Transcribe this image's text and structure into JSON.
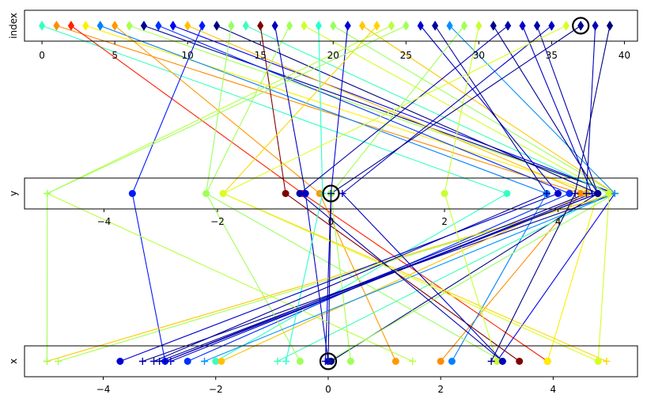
{
  "chart_data": {
    "type": "parallel-coordinates",
    "title": "",
    "axes": [
      {
        "name": "index",
        "label": "index",
        "range": [
          -1.2,
          40.9
        ],
        "ticks": [
          0,
          5,
          10,
          15,
          20,
          25,
          30,
          35,
          40
        ]
      },
      {
        "name": "y",
        "label": "y",
        "range": [
          -5.4,
          5.4
        ],
        "ticks": [
          -4,
          -2,
          0,
          2,
          4
        ],
        "tick_labels": [
          "−4",
          "−2",
          "0",
          "2",
          "4"
        ]
      },
      {
        "name": "x",
        "label": "x",
        "range": [
          -5.4,
          5.5
        ],
        "ticks": [
          -4,
          -2,
          0,
          2,
          4
        ],
        "tick_labels": [
          "−4",
          "−2",
          "0",
          "2",
          "4"
        ]
      }
    ],
    "colormap": "jet",
    "highlight_index": 37,
    "records": [
      {
        "index": 0,
        "y": 3.1,
        "x": -2.0,
        "marker": "o",
        "color": "#36ffc3"
      },
      {
        "index": 1,
        "y": 4.4,
        "x": 2.0,
        "marker": "o",
        "color": "#ff8c00"
      },
      {
        "index": 2,
        "y": -0.5,
        "x": 3.9,
        "marker": "o",
        "color": "#ff2000"
      },
      {
        "index": 3,
        "y": 4.7,
        "x": 3.9,
        "marker": "o",
        "color": "#ffee00"
      },
      {
        "index": 4,
        "y": 3.8,
        "x": 2.2,
        "marker": "o",
        "color": "#0080ff"
      },
      {
        "index": 5,
        "y": -0.2,
        "x": 1.2,
        "marker": "o",
        "color": "#ff9800"
      },
      {
        "index": 6,
        "y": 5.0,
        "x": -4.8,
        "marker": "+",
        "color": "#a8ff50"
      },
      {
        "index": 7,
        "y": 5.0,
        "x": -3.3,
        "marker": "+",
        "color": "#00009b"
      },
      {
        "index": 8,
        "y": 4.2,
        "x": -2.5,
        "marker": "o",
        "color": "#0030ff"
      },
      {
        "index": 9,
        "y": 5.0,
        "x": 3.0,
        "marker": "+",
        "color": "#0000f0"
      },
      {
        "index": 10,
        "y": 4.5,
        "x": -1.9,
        "marker": "o",
        "color": "#ffc000"
      },
      {
        "index": 11,
        "y": -3.5,
        "x": -2.9,
        "marker": "o",
        "color": "#0018ff"
      },
      {
        "index": 12,
        "y": 4.7,
        "x": 0.05,
        "marker": "o",
        "color": "#000080"
      },
      {
        "index": 13,
        "y": -2.2,
        "x": 3.1,
        "marker": "+",
        "color": "#96ff60"
      },
      {
        "index": 14,
        "y": 4.9,
        "x": -0.9,
        "marker": "+",
        "color": "#3cffba"
      },
      {
        "index": 15,
        "y": -0.8,
        "x": 3.4,
        "marker": "o",
        "color": "#800000"
      },
      {
        "index": 16,
        "y": -0.45,
        "x": 0.0,
        "marker": "o",
        "color": "#0000c0"
      },
      {
        "index": 17,
        "y": -2.2,
        "x": -0.5,
        "marker": "o",
        "color": "#a0ff58"
      },
      {
        "index": 18,
        "y": 4.9,
        "x": 4.8,
        "marker": "o",
        "color": "#d0ff28"
      },
      {
        "index": 19,
        "y": -0.15,
        "x": -0.75,
        "marker": "+",
        "color": "#28ffce"
      },
      {
        "index": 20,
        "y": 5.0,
        "x": 0.0,
        "marker": "+",
        "color": "#98ff5e"
      },
      {
        "index": 21,
        "y": 0.0,
        "x": -0.05,
        "marker": "+",
        "color": "#0000d8"
      },
      {
        "index": 22,
        "y": 5.0,
        "x": -5.0,
        "marker": "+",
        "color": "#ffc800"
      },
      {
        "index": 23,
        "y": -1.9,
        "x": 4.95,
        "marker": "+",
        "color": "#ffd500"
      },
      {
        "index": 24,
        "y": -5.0,
        "x": 1.5,
        "marker": "+",
        "color": "#b8ff40"
      },
      {
        "index": 25,
        "y": -5.0,
        "x": -5.0,
        "marker": "+",
        "color": "#a0ff58"
      },
      {
        "index": 26,
        "y": 4.0,
        "x": -3.7,
        "marker": "o",
        "color": "#0000d0"
      },
      {
        "index": 27,
        "y": 3.8,
        "x": -3.1,
        "marker": "+",
        "color": "#0000a0"
      },
      {
        "index": 28,
        "y": 5.0,
        "x": -2.2,
        "marker": "+",
        "color": "#0090ff"
      },
      {
        "index": 29,
        "y": 0.0,
        "x": 0.4,
        "marker": "o",
        "color": "#a0ff58"
      },
      {
        "index": 30,
        "y": 2.0,
        "x": 3.0,
        "marker": "o",
        "color": "#c8ff30"
      },
      {
        "index": 31,
        "y": 4.7,
        "x": -3.0,
        "marker": "+",
        "color": "#000090"
      },
      {
        "index": 32,
        "y": -0.55,
        "x": 3.1,
        "marker": "o",
        "color": "#0000b0"
      },
      {
        "index": 33,
        "y": 4.6,
        "x": -2.8,
        "marker": "+",
        "color": "#0000c8"
      },
      {
        "index": 34,
        "y": 4.7,
        "x": -2.9,
        "marker": "+",
        "color": "#0000a8"
      },
      {
        "index": 35,
        "y": 0.2,
        "x": 3.1,
        "marker": "+",
        "color": "#0000c0"
      },
      {
        "index": 36,
        "y": -1.9,
        "x": 4.8,
        "marker": "o",
        "color": "#d8ff20"
      },
      {
        "index": 37,
        "y": 0.0,
        "x": 0.0,
        "marker": "+",
        "color": "#000090"
      },
      {
        "index": 38,
        "y": 4.5,
        "x": -2.9,
        "marker": "+",
        "color": "#0000b8"
      },
      {
        "index": 39,
        "y": 4.3,
        "x": 2.9,
        "marker": "+",
        "color": "#000080"
      }
    ]
  }
}
